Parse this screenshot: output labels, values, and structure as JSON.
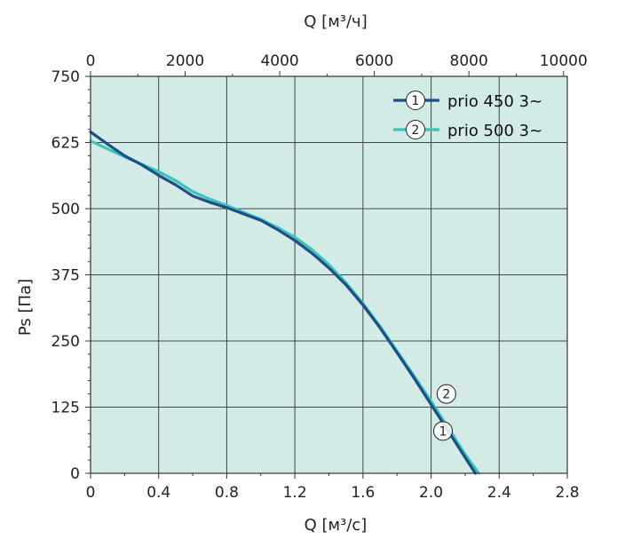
{
  "chart_data": {
    "type": "line",
    "title": "",
    "xlabel": "Q [м³/с]",
    "x2label": "Q [м³/ч]",
    "ylabel": "Ps [Па]",
    "xlim": [
      0,
      2.8
    ],
    "x2lim": [
      0,
      10080
    ],
    "ylim": [
      0,
      750
    ],
    "x_ticks": [
      "0",
      "0.4",
      "0.8",
      "1.2",
      "1.6",
      "2.0",
      "2.4",
      "2.8"
    ],
    "x_tick_values": [
      0,
      0.4,
      0.8,
      1.2,
      1.6,
      2.0,
      2.4,
      2.8
    ],
    "x2_ticks": [
      "0",
      "2000",
      "4000",
      "6000",
      "8000",
      "10000"
    ],
    "x2_tick_values": [
      0,
      2000,
      4000,
      6000,
      8000,
      10000
    ],
    "y_ticks": [
      "0",
      "125",
      "250",
      "375",
      "500",
      "625",
      "750"
    ],
    "y_tick_values": [
      0,
      125,
      250,
      375,
      500,
      625,
      750
    ],
    "grid": true,
    "background": "#d3ebe6",
    "legend_position": "top-right",
    "series": [
      {
        "name": "prio 450 3~",
        "marker": "1",
        "color": "#1b4f8a",
        "x": [
          0,
          0.1,
          0.2,
          0.3,
          0.4,
          0.5,
          0.6,
          0.7,
          0.8,
          0.9,
          1.0,
          1.1,
          1.2,
          1.3,
          1.4,
          1.5,
          1.6,
          1.7,
          1.8,
          1.9,
          2.0,
          2.1,
          2.2,
          2.26
        ],
        "y": [
          645,
          622,
          600,
          583,
          563,
          545,
          524,
          512,
          502,
          490,
          478,
          460,
          440,
          416,
          388,
          356,
          318,
          275,
          228,
          180,
          130,
          80,
          30,
          0
        ]
      },
      {
        "name": "prio 500 3~",
        "marker": "2",
        "color": "#3cc4b7",
        "x": [
          0,
          0.1,
          0.2,
          0.3,
          0.4,
          0.5,
          0.6,
          0.7,
          0.8,
          0.9,
          1.0,
          1.1,
          1.2,
          1.3,
          1.4,
          1.5,
          1.6,
          1.7,
          1.8,
          1.9,
          2.0,
          2.1,
          2.2,
          2.28
        ],
        "y": [
          628,
          613,
          598,
          584,
          570,
          553,
          532,
          518,
          506,
          493,
          480,
          464,
          446,
          423,
          394,
          360,
          321,
          278,
          231,
          184,
          136,
          86,
          36,
          0
        ]
      }
    ]
  }
}
